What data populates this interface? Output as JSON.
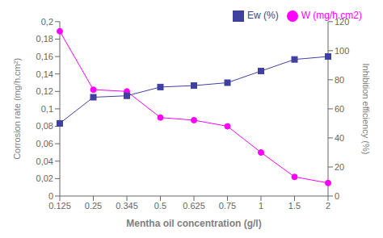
{
  "chart_data": {
    "type": "line",
    "xlabel": "Mentha oil concentration (g/l)",
    "ylabel": "Corrosion rate (mg/h.cm²)",
    "y2label": "Inhibition efficiency (%)",
    "categories": [
      "0.125",
      "0.25",
      "0.345",
      "0.5",
      "0.625",
      "0.75",
      "1",
      "1.5",
      "2"
    ],
    "series": [
      {
        "name": "W (mg/h.cm2)",
        "color": "#FF00FF",
        "marker": "circle",
        "values": [
          0.189,
          0.122,
          0.12,
          0.09,
          0.087,
          0.08,
          0.05,
          0.022,
          0.015
        ]
      },
      {
        "name": "Ew (%)",
        "color": "#4040A0",
        "marker": "square",
        "axis": "y2",
        "values": [
          50,
          68,
          69,
          75,
          76,
          78,
          86,
          94,
          96
        ]
      }
    ],
    "ylim": [
      0,
      0.2
    ],
    "yticks": [
      0,
      {
        "value": 0.02,
        "label": "0,02"
      },
      {
        "value": 0.04,
        "label": "0,04"
      },
      {
        "value": 0.06,
        "label": "0,06"
      },
      {
        "value": 0.08,
        "label": "0,08"
      },
      {
        "value": 0.1,
        "label": "0,1"
      },
      {
        "value": 0.12,
        "label": "0,12"
      },
      {
        "value": 0.14,
        "label": "0,14"
      },
      {
        "value": 0.16,
        "label": "0,16"
      },
      {
        "value": 0.18,
        "label": "0,18"
      },
      {
        "value": 0.2,
        "label": "0,2"
      }
    ],
    "y2lim": [
      0,
      120
    ],
    "y2ticks": [
      0,
      20,
      40,
      60,
      80,
      100,
      120
    ],
    "grid": false,
    "legend": "upper right"
  }
}
